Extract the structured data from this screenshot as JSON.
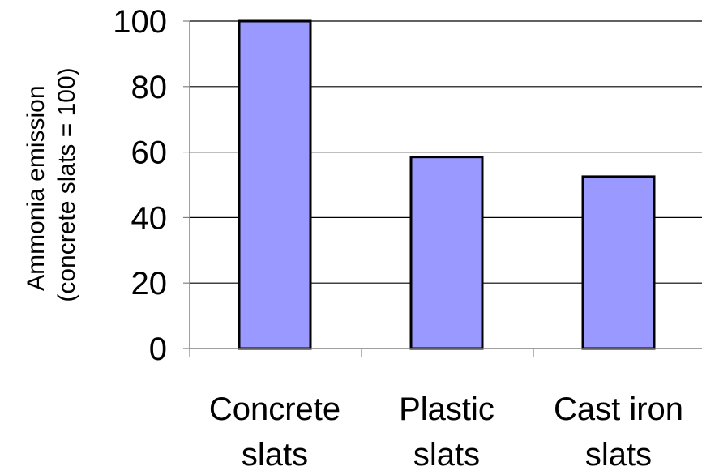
{
  "chart_data": {
    "type": "bar",
    "categories": [
      [
        "Concrete",
        "slats"
      ],
      [
        "Plastic",
        "slats"
      ],
      [
        "Cast iron",
        "slats"
      ]
    ],
    "values": [
      100,
      58.5,
      52.5
    ],
    "title": "",
    "xlabel": "",
    "ylabel": [
      "Ammonia emission",
      "(concrete slats = 100)"
    ],
    "ylim": [
      0,
      100
    ],
    "yticks": [
      "0",
      "20",
      "40",
      "60",
      "80",
      "100"
    ],
    "grid": true,
    "colors": {
      "bar": "#9999ff",
      "bar_stroke": "#000000",
      "grid": "#000000",
      "axis": "#808080"
    }
  }
}
